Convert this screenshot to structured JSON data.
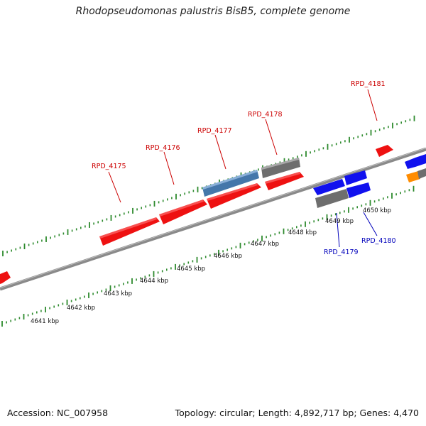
{
  "title": "Rhodopseudomonas palustris BisB5, complete genome",
  "footer": {
    "accession": "Accession: NC_007958",
    "summary": "Topology: circular; Length: 4,892,717 bp; Genes: 4,470"
  },
  "colors": {
    "backbone": "#8a8a8a",
    "tick": "#2e8b2e",
    "forward_gene": "#ee1111",
    "reverse_gene": "#1111ee",
    "hypothetical_gene": "#6e6e6e",
    "rna_gene": "#4477aa",
    "other_gene": "#ff8c00",
    "forward_label": "#cc0000",
    "reverse_label": "#0000bb"
  },
  "kbp_labels": [
    "4641 kbp",
    "4642 kbp",
    "4643 kbp",
    "4644 kbp",
    "4645 kbp",
    "4646 kbp",
    "4647 kbp",
    "4648 kbp",
    "4649 kbp",
    "4650 kbp"
  ],
  "gene_labels": [
    {
      "text": "RPD_4175",
      "strand": "forward"
    },
    {
      "text": "RPD_4176",
      "strand": "forward"
    },
    {
      "text": "RPD_4177",
      "strand": "forward"
    },
    {
      "text": "RPD_4178",
      "strand": "forward"
    },
    {
      "text": "RPD_4181",
      "strand": "forward"
    },
    {
      "text": "RPD_4179",
      "strand": "reverse"
    },
    {
      "text": "RPD_4180",
      "strand": "reverse"
    }
  ]
}
